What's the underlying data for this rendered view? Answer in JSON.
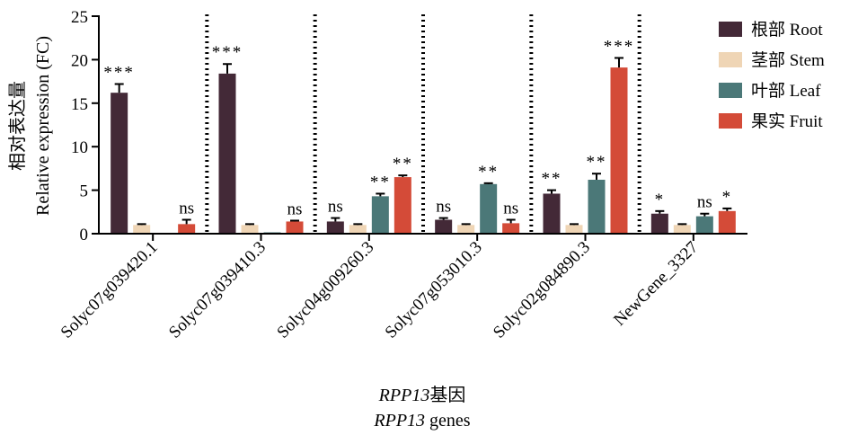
{
  "chart_data": {
    "type": "bar",
    "categories": [
      "Solyc07g039420.1",
      "Solyc07g039410.3",
      "Solyc04g009260.3",
      "Solyc07g053010.3",
      "Solyc02g084890.3",
      "NewGene_3327"
    ],
    "series": [
      {
        "name": "根部 Root",
        "color": "#432937",
        "values": [
          16.2,
          18.4,
          1.4,
          1.6,
          4.6,
          2.3
        ],
        "errors": [
          1.0,
          1.1,
          0.4,
          0.2,
          0.4,
          0.3
        ]
      },
      {
        "name": "茎部 Stem",
        "color": "#efd5b5",
        "values": [
          1.0,
          1.0,
          1.0,
          1.0,
          1.0,
          1.0
        ],
        "errors": [
          0.1,
          0.1,
          0.1,
          0.1,
          0.1,
          0.1
        ]
      },
      {
        "name": "叶部 Leaf",
        "color": "#4b7878",
        "values": [
          0.0,
          0.1,
          4.3,
          5.7,
          6.2,
          2.0
        ],
        "errors": [
          0.0,
          0.0,
          0.3,
          0.1,
          0.7,
          0.3
        ]
      },
      {
        "name": "果实 Fruit",
        "color": "#d44b38",
        "values": [
          1.1,
          1.4,
          6.5,
          1.2,
          19.1,
          2.6
        ],
        "errors": [
          0.5,
          0.1,
          0.2,
          0.4,
          1.1,
          0.3
        ]
      }
    ],
    "significance": [
      [
        "***",
        "",
        "",
        "ns"
      ],
      [
        "***",
        "",
        "",
        "ns"
      ],
      [
        "ns",
        "",
        "**",
        "**"
      ],
      [
        "ns",
        "",
        "**",
        "ns"
      ],
      [
        "**",
        "",
        "**",
        "***"
      ],
      [
        "*",
        "",
        "ns",
        "*"
      ]
    ],
    "ylim": [
      0,
      25
    ],
    "yticks": [
      0,
      5,
      10,
      15,
      20,
      25
    ],
    "ylabel_line1": "相对表达量",
    "ylabel_line2": "Relative expression (FC)",
    "xlabel_gene": "RPP13",
    "xlabel_line1_suffix": "基因",
    "xlabel_line2_suffix": " genes",
    "legend_position": "top-right",
    "separators": "dotted vertical lines between groups"
  }
}
